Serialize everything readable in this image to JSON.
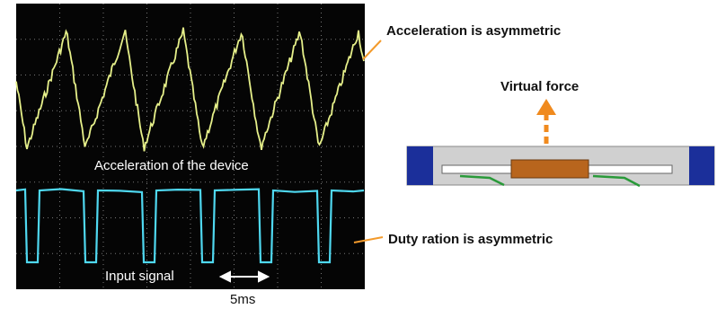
{
  "labels": {
    "acceleration_asym": "Acceleration is asymmetric",
    "virtual_force": "Virtual force",
    "acceleration_device": "Acceleration of the device",
    "duty_asym": "Duty ration is asymmetric",
    "input_signal": "Input signal",
    "time_scale": "5ms"
  }
}
